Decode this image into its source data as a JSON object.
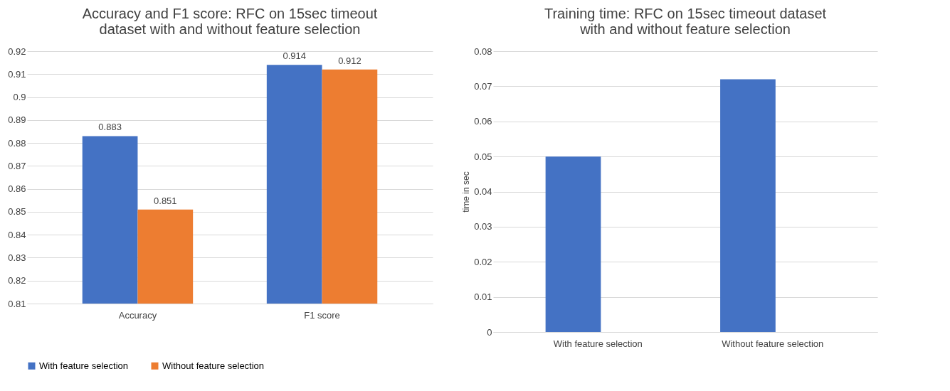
{
  "chart_data": [
    {
      "type": "bar",
      "title": "Accuracy and F1 score: RFC on 15sec timeout dataset with and without feature selection",
      "categories": [
        "Accuracy",
        "F1 score"
      ],
      "series": [
        {
          "name": "With feature selection",
          "color": "#4472c4",
          "values": [
            0.883,
            0.914
          ]
        },
        {
          "name": "Without feature selection",
          "color": "#ed7d31",
          "values": [
            0.851,
            0.912
          ]
        }
      ],
      "ylim": [
        0.81,
        0.92
      ],
      "yticks": [
        0.81,
        0.82,
        0.83,
        0.84,
        0.85,
        0.86,
        0.87,
        0.88,
        0.89,
        0.9,
        0.91,
        0.92
      ],
      "grid": "y",
      "legend": "bottom",
      "data_labels": true
    },
    {
      "type": "bar",
      "title": "Training time: RFC on 15sec timeout dataset with and without feature selection",
      "categories": [
        "With feature selection",
        "Without feature selection"
      ],
      "series": [
        {
          "color": "#4472c4",
          "values": [
            0.05,
            0.072
          ]
        }
      ],
      "ylabel": "time in sec",
      "ylim": [
        0,
        0.08
      ],
      "yticks": [
        0,
        0.01,
        0.02,
        0.03,
        0.04,
        0.05,
        0.06,
        0.07,
        0.08
      ],
      "grid": "y"
    }
  ]
}
